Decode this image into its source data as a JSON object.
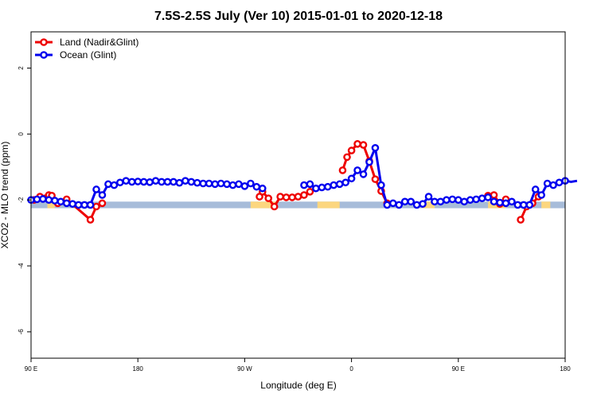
{
  "chart_data": {
    "type": "line",
    "title": "7.5S-2.5S July (Ver 10)   2015-01-01 to 2020-12-18",
    "xlabel": "Longitude (deg E)",
    "ylabel": "XCO2 - MLO trend (ppm)",
    "xlim": [
      90,
      450
    ],
    "ylim": [
      -6.8,
      3.1
    ],
    "x_ticks": [
      {
        "value": 90,
        "label": "90 E"
      },
      {
        "value": 162,
        "label": "180"
      },
      {
        "value": 234,
        "label": "90 W"
      },
      {
        "value": 306,
        "label": "0"
      },
      {
        "value": 378,
        "label": "90 E"
      },
      {
        "value": 450,
        "label": "180"
      }
    ],
    "y_ticks": [
      {
        "value": 2,
        "label": "2"
      },
      {
        "value": 0,
        "label": "0"
      },
      {
        "value": -2,
        "label": "-2"
      },
      {
        "value": -4,
        "label": "-4"
      },
      {
        "value": -6,
        "label": "-6"
      }
    ],
    "grid": false,
    "legend": {
      "position": "top-left"
    },
    "background_band": {
      "y_range": [
        -2.25,
        -2.05
      ],
      "ocean_color": "#a7bcd9",
      "land_color": "#fcd67f",
      "land_segments": [
        [
          101,
          106
        ],
        [
          238,
          256
        ],
        [
          283,
          298
        ],
        [
          354,
          362
        ],
        [
          398,
          410
        ],
        [
          434,
          440
        ]
      ]
    },
    "series": [
      {
        "name": "Land (Nadir&Glint)",
        "color": "#ee0000",
        "points": [
          [
            92,
            -2.0
          ],
          [
            96,
            -1.9
          ],
          [
            102,
            -1.85
          ],
          [
            104,
            -1.87
          ],
          [
            108,
            -2.1
          ],
          [
            114,
            -1.98
          ],
          [
            130,
            -2.6
          ],
          [
            134,
            -2.2
          ],
          [
            138,
            -2.1
          ],
          null,
          [
            244,
            -1.9
          ],
          [
            246,
            -1.75
          ],
          [
            250,
            -1.95
          ],
          [
            254,
            -2.2
          ],
          [
            258,
            -1.9
          ],
          [
            262,
            -1.92
          ],
          [
            266,
            -1.92
          ],
          [
            270,
            -1.9
          ],
          [
            274,
            -1.85
          ],
          [
            278,
            -1.75
          ],
          null,
          [
            300,
            -1.1
          ],
          [
            303,
            -0.7
          ],
          [
            306,
            -0.5
          ],
          [
            310,
            -0.3
          ],
          [
            314,
            -0.33
          ],
          [
            318,
            -0.82
          ],
          [
            322,
            -1.37
          ],
          [
            326,
            -1.73
          ],
          [
            330,
            -2.1
          ],
          null,
          [
            398,
            -1.87
          ],
          [
            402,
            -1.85
          ],
          [
            406,
            -2.12
          ],
          [
            410,
            -1.98
          ],
          null,
          [
            420,
            -2.6
          ],
          [
            424,
            -2.2
          ],
          [
            428,
            -2.1
          ],
          [
            432,
            -1.9
          ]
        ]
      },
      {
        "name": "Ocean (Glint)",
        "color": "#0000ee",
        "points": [
          [
            90,
            -2.0
          ],
          [
            94,
            -1.98
          ],
          [
            98,
            -1.97
          ],
          [
            102,
            -2.0
          ],
          [
            106,
            -2.02
          ],
          [
            110,
            -2.05
          ],
          [
            114,
            -2.1
          ],
          [
            118,
            -2.12
          ],
          [
            122,
            -2.15
          ],
          [
            126,
            -2.15
          ],
          [
            130,
            -2.15
          ],
          [
            134,
            -1.68
          ],
          [
            138,
            -1.85
          ],
          [
            142,
            -1.52
          ],
          [
            146,
            -1.55
          ],
          [
            150,
            -1.47
          ],
          [
            154,
            -1.42
          ],
          [
            158,
            -1.45
          ],
          [
            162,
            -1.44
          ],
          [
            166,
            -1.45
          ],
          [
            170,
            -1.46
          ],
          [
            174,
            -1.42
          ],
          [
            178,
            -1.45
          ],
          [
            182,
            -1.45
          ],
          [
            186,
            -1.45
          ],
          [
            190,
            -1.48
          ],
          [
            194,
            -1.42
          ],
          [
            198,
            -1.45
          ],
          [
            202,
            -1.48
          ],
          [
            206,
            -1.5
          ],
          [
            210,
            -1.5
          ],
          [
            214,
            -1.52
          ],
          [
            218,
            -1.5
          ],
          [
            222,
            -1.52
          ],
          [
            226,
            -1.55
          ],
          [
            230,
            -1.52
          ],
          [
            234,
            -1.58
          ],
          [
            238,
            -1.5
          ],
          [
            242,
            -1.6
          ],
          [
            246,
            -1.65
          ],
          null,
          [
            274,
            -1.55
          ],
          [
            278,
            -1.52
          ],
          [
            282,
            -1.65
          ],
          [
            286,
            -1.62
          ],
          [
            290,
            -1.6
          ],
          [
            294,
            -1.55
          ],
          [
            298,
            -1.52
          ],
          [
            302,
            -1.47
          ],
          [
            306,
            -1.35
          ],
          [
            310,
            -1.1
          ],
          [
            314,
            -1.22
          ],
          [
            318,
            -0.85
          ],
          [
            322,
            -0.42
          ],
          [
            326,
            -1.55
          ],
          [
            330,
            -2.15
          ],
          [
            334,
            -2.1
          ],
          [
            338,
            -2.15
          ],
          [
            342,
            -2.05
          ],
          [
            346,
            -2.05
          ],
          [
            350,
            -2.15
          ],
          [
            354,
            -2.12
          ],
          [
            358,
            -1.9
          ],
          [
            362,
            -2.05
          ],
          [
            366,
            -2.05
          ],
          [
            370,
            -2.0
          ],
          [
            374,
            -1.98
          ],
          [
            378,
            -2.0
          ],
          [
            382,
            -2.05
          ],
          [
            386,
            -2.0
          ],
          [
            390,
            -1.98
          ],
          [
            394,
            -1.95
          ],
          [
            398,
            -1.92
          ],
          [
            402,
            -2.05
          ],
          [
            406,
            -2.08
          ],
          [
            410,
            -2.1
          ],
          [
            414,
            -2.05
          ],
          [
            418,
            -2.15
          ],
          [
            422,
            -2.15
          ],
          [
            426,
            -2.15
          ],
          [
            430,
            -1.68
          ],
          [
            434,
            -1.85
          ],
          [
            438,
            -1.5
          ],
          [
            442,
            -1.55
          ],
          [
            446,
            -1.47
          ],
          [
            450,
            -1.42
          ],
          [
            454,
            -1.45
          ],
          [
            458,
            -1.42
          ]
        ]
      }
    ]
  }
}
